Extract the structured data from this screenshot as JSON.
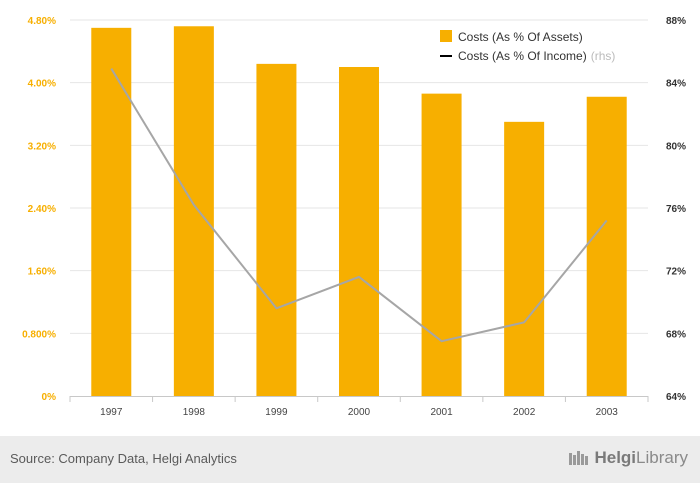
{
  "chart_data": {
    "type": "bar",
    "categories": [
      "1997",
      "1998",
      "1999",
      "2000",
      "2001",
      "2002",
      "2003"
    ],
    "series": [
      {
        "name": "Costs (As % Of Assets)",
        "kind": "bar",
        "axis": "left",
        "color": "#F7AF00",
        "values": [
          4.7,
          4.72,
          4.24,
          4.2,
          3.86,
          3.5,
          3.82
        ]
      },
      {
        "name": "Costs (As % Of Income)",
        "name_suffix": "(rhs)",
        "kind": "line",
        "axis": "right",
        "color": "#A6A6A6",
        "legend_color": "#000000",
        "values": [
          84.9,
          76.2,
          69.6,
          71.6,
          67.5,
          68.7,
          75.2
        ]
      }
    ],
    "y_left": {
      "range": [
        0,
        4.8
      ],
      "ticks": [
        0,
        0.8,
        1.6,
        2.4,
        3.2,
        4.0,
        4.8
      ],
      "tick_labels": [
        "0%",
        "0.800%",
        "1.60%",
        "2.40%",
        "3.20%",
        "4.00%",
        "4.80%"
      ],
      "color": "#F7AF00"
    },
    "y_right": {
      "range": [
        64,
        88
      ],
      "ticks": [
        64,
        68,
        72,
        76,
        80,
        84,
        88
      ],
      "tick_labels": [
        "64%",
        "68%",
        "72%",
        "76%",
        "80%",
        "84%",
        "88%"
      ],
      "color": "#333333"
    },
    "grid": true,
    "legend_position": "top-right"
  },
  "footer": {
    "source": "Source: Company Data, Helgi Analytics",
    "logo_text_1": "Helgi",
    "logo_text_2": "Library"
  }
}
